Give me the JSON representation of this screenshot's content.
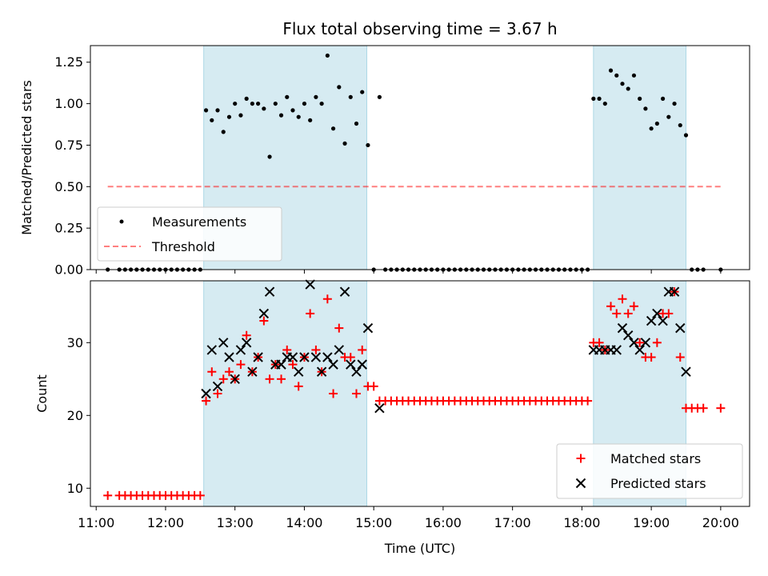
{
  "chart_data": [
    {
      "type": "scatter",
      "title": "Flux total observing time = 3.67 h",
      "xlabel": "",
      "ylabel": "Matched/Predicted stars",
      "ylim": [
        0,
        1.35
      ],
      "yticks": [
        "0.00",
        "0.25",
        "0.50",
        "0.75",
        "1.00",
        "1.25"
      ],
      "ytick_values": [
        0,
        0.25,
        0.5,
        0.75,
        1.0,
        1.25
      ],
      "xlim": [
        "10:55",
        "20:25"
      ],
      "xticks": [],
      "legend_position": "lower-left",
      "shaded_intervals": [
        [
          "12:33",
          "14:54"
        ],
        [
          "18:10",
          "19:30"
        ]
      ],
      "shade_color": "#add8e6",
      "series": [
        {
          "name": "Measurements",
          "marker": "dot",
          "color": "#000000",
          "points": [
            [
              "11:10",
              0
            ],
            [
              "11:20",
              0
            ],
            [
              "11:25",
              0
            ],
            [
              "11:30",
              0
            ],
            [
              "11:35",
              0
            ],
            [
              "11:40",
              0
            ],
            [
              "11:45",
              0
            ],
            [
              "11:50",
              0
            ],
            [
              "11:55",
              0
            ],
            [
              "12:00",
              0
            ],
            [
              "12:05",
              0
            ],
            [
              "12:10",
              0
            ],
            [
              "12:15",
              0
            ],
            [
              "12:20",
              0
            ],
            [
              "12:25",
              0
            ],
            [
              "12:30",
              0
            ],
            [
              "12:35",
              0.96
            ],
            [
              "12:40",
              0.9
            ],
            [
              "12:45",
              0.96
            ],
            [
              "12:50",
              0.83
            ],
            [
              "12:55",
              0.92
            ],
            [
              "13:00",
              1.0
            ],
            [
              "13:05",
              0.93
            ],
            [
              "13:10",
              1.03
            ],
            [
              "13:15",
              1.0
            ],
            [
              "13:20",
              1.0
            ],
            [
              "13:25",
              0.97
            ],
            [
              "13:30",
              0.68
            ],
            [
              "13:35",
              1.0
            ],
            [
              "13:40",
              0.93
            ],
            [
              "13:45",
              1.04
            ],
            [
              "13:50",
              0.96
            ],
            [
              "13:55",
              0.92
            ],
            [
              "14:00",
              1.0
            ],
            [
              "14:05",
              0.9
            ],
            [
              "14:10",
              1.04
            ],
            [
              "14:15",
              1.0
            ],
            [
              "14:20",
              1.29
            ],
            [
              "14:25",
              0.85
            ],
            [
              "14:30",
              1.1
            ],
            [
              "14:35",
              0.76
            ],
            [
              "14:40",
              1.04
            ],
            [
              "14:45",
              0.88
            ],
            [
              "14:50",
              1.07
            ],
            [
              "14:55",
              0.75
            ],
            [
              "15:00",
              0
            ],
            [
              "15:05",
              1.04
            ],
            [
              "15:10",
              0
            ],
            [
              "15:15",
              0
            ],
            [
              "15:20",
              0
            ],
            [
              "15:25",
              0
            ],
            [
              "15:30",
              0
            ],
            [
              "15:35",
              0
            ],
            [
              "15:40",
              0
            ],
            [
              "15:45",
              0
            ],
            [
              "15:50",
              0
            ],
            [
              "15:55",
              0
            ],
            [
              "16:00",
              0
            ],
            [
              "16:05",
              0
            ],
            [
              "16:10",
              0
            ],
            [
              "16:15",
              0
            ],
            [
              "16:20",
              0
            ],
            [
              "16:25",
              0
            ],
            [
              "16:30",
              0
            ],
            [
              "16:35",
              0
            ],
            [
              "16:40",
              0
            ],
            [
              "16:45",
              0
            ],
            [
              "16:50",
              0
            ],
            [
              "16:55",
              0
            ],
            [
              "17:00",
              0
            ],
            [
              "17:05",
              0
            ],
            [
              "17:10",
              0
            ],
            [
              "17:15",
              0
            ],
            [
              "17:20",
              0
            ],
            [
              "17:25",
              0
            ],
            [
              "17:30",
              0
            ],
            [
              "17:35",
              0
            ],
            [
              "17:40",
              0
            ],
            [
              "17:45",
              0
            ],
            [
              "17:50",
              0
            ],
            [
              "17:55",
              0
            ],
            [
              "18:00",
              0
            ],
            [
              "18:05",
              0
            ],
            [
              "18:10",
              1.03
            ],
            [
              "18:15",
              1.03
            ],
            [
              "18:20",
              1.0
            ],
            [
              "18:25",
              1.2
            ],
            [
              "18:30",
              1.17
            ],
            [
              "18:35",
              1.12
            ],
            [
              "18:40",
              1.09
            ],
            [
              "18:45",
              1.17
            ],
            [
              "18:50",
              1.03
            ],
            [
              "18:55",
              0.97
            ],
            [
              "19:00",
              0.85
            ],
            [
              "19:05",
              0.88
            ],
            [
              "19:10",
              1.03
            ],
            [
              "19:15",
              0.92
            ],
            [
              "19:20",
              1.0
            ],
            [
              "19:25",
              0.87
            ],
            [
              "19:30",
              0.81
            ],
            [
              "19:35",
              0
            ],
            [
              "19:40",
              0
            ],
            [
              "19:45",
              0
            ],
            [
              "20:00",
              0
            ]
          ]
        },
        {
          "name": "Threshold",
          "type": "line",
          "style": "dashed",
          "color": "#ff0000",
          "alpha": 0.5,
          "points": [
            [
              "11:10",
              0.5
            ],
            [
              "20:00",
              0.5
            ]
          ]
        }
      ]
    },
    {
      "type": "scatter",
      "title": "",
      "xlabel": "Time (UTC)",
      "ylabel": "Count",
      "ylim": [
        7.5,
        38.5
      ],
      "yticks": [
        "10",
        "20",
        "30"
      ],
      "ytick_values": [
        10,
        20,
        30
      ],
      "xlim": [
        "10:55",
        "20:25"
      ],
      "xticks": [
        "11:00",
        "12:00",
        "13:00",
        "14:00",
        "15:00",
        "16:00",
        "17:00",
        "18:00",
        "19:00",
        "20:00"
      ],
      "legend_position": "lower-right",
      "shaded_intervals": [
        [
          "12:33",
          "14:54"
        ],
        [
          "18:10",
          "19:30"
        ]
      ],
      "shade_color": "#add8e6",
      "series": [
        {
          "name": "Matched stars",
          "marker": "plus",
          "color": "#ff0000",
          "points": [
            [
              "11:10",
              9
            ],
            [
              "11:20",
              9
            ],
            [
              "11:25",
              9
            ],
            [
              "11:30",
              9
            ],
            [
              "11:35",
              9
            ],
            [
              "11:40",
              9
            ],
            [
              "11:45",
              9
            ],
            [
              "11:50",
              9
            ],
            [
              "11:55",
              9
            ],
            [
              "12:00",
              9
            ],
            [
              "12:05",
              9
            ],
            [
              "12:10",
              9
            ],
            [
              "12:15",
              9
            ],
            [
              "12:20",
              9
            ],
            [
              "12:25",
              9
            ],
            [
              "12:30",
              9
            ],
            [
              "12:35",
              22
            ],
            [
              "12:40",
              26
            ],
            [
              "12:45",
              23
            ],
            [
              "12:50",
              25
            ],
            [
              "12:55",
              26
            ],
            [
              "13:00",
              25
            ],
            [
              "13:05",
              27
            ],
            [
              "13:10",
              31
            ],
            [
              "13:15",
              26
            ],
            [
              "13:20",
              28
            ],
            [
              "13:25",
              33
            ],
            [
              "13:30",
              25
            ],
            [
              "13:35",
              27
            ],
            [
              "13:40",
              25
            ],
            [
              "13:45",
              29
            ],
            [
              "13:50",
              27
            ],
            [
              "13:55",
              24
            ],
            [
              "14:00",
              28
            ],
            [
              "14:05",
              34
            ],
            [
              "14:10",
              29
            ],
            [
              "14:15",
              26
            ],
            [
              "14:20",
              36
            ],
            [
              "14:25",
              23
            ],
            [
              "14:30",
              32
            ],
            [
              "14:35",
              28
            ],
            [
              "14:40",
              28
            ],
            [
              "14:45",
              23
            ],
            [
              "14:50",
              29
            ],
            [
              "14:55",
              24
            ],
            [
              "15:00",
              24
            ],
            [
              "15:05",
              22
            ],
            [
              "15:10",
              22
            ],
            [
              "15:15",
              22
            ],
            [
              "15:20",
              22
            ],
            [
              "15:25",
              22
            ],
            [
              "15:30",
              22
            ],
            [
              "15:35",
              22
            ],
            [
              "15:40",
              22
            ],
            [
              "15:45",
              22
            ],
            [
              "15:50",
              22
            ],
            [
              "15:55",
              22
            ],
            [
              "16:00",
              22
            ],
            [
              "16:05",
              22
            ],
            [
              "16:10",
              22
            ],
            [
              "16:15",
              22
            ],
            [
              "16:20",
              22
            ],
            [
              "16:25",
              22
            ],
            [
              "16:30",
              22
            ],
            [
              "16:35",
              22
            ],
            [
              "16:40",
              22
            ],
            [
              "16:45",
              22
            ],
            [
              "16:50",
              22
            ],
            [
              "16:55",
              22
            ],
            [
              "17:00",
              22
            ],
            [
              "17:05",
              22
            ],
            [
              "17:10",
              22
            ],
            [
              "17:15",
              22
            ],
            [
              "17:20",
              22
            ],
            [
              "17:25",
              22
            ],
            [
              "17:30",
              22
            ],
            [
              "17:35",
              22
            ],
            [
              "17:40",
              22
            ],
            [
              "17:45",
              22
            ],
            [
              "17:50",
              22
            ],
            [
              "17:55",
              22
            ],
            [
              "18:00",
              22
            ],
            [
              "18:05",
              22
            ],
            [
              "18:10",
              30
            ],
            [
              "18:15",
              30
            ],
            [
              "18:20",
              29
            ],
            [
              "18:25",
              35
            ],
            [
              "18:30",
              34
            ],
            [
              "18:35",
              36
            ],
            [
              "18:40",
              34
            ],
            [
              "18:45",
              35
            ],
            [
              "18:50",
              30
            ],
            [
              "18:55",
              28
            ],
            [
              "19:00",
              28
            ],
            [
              "19:05",
              30
            ],
            [
              "19:10",
              34
            ],
            [
              "19:15",
              34
            ],
            [
              "19:20",
              37
            ],
            [
              "19:25",
              28
            ],
            [
              "19:30",
              21
            ],
            [
              "19:35",
              21
            ],
            [
              "19:40",
              21
            ],
            [
              "19:45",
              21
            ],
            [
              "20:00",
              21
            ]
          ]
        },
        {
          "name": "Predicted stars",
          "marker": "x",
          "color": "#000000",
          "points": [
            [
              "12:35",
              23
            ],
            [
              "12:40",
              29
            ],
            [
              "12:45",
              24
            ],
            [
              "12:50",
              30
            ],
            [
              "12:55",
              28
            ],
            [
              "13:00",
              25
            ],
            [
              "13:05",
              29
            ],
            [
              "13:10",
              30
            ],
            [
              "13:15",
              26
            ],
            [
              "13:20",
              28
            ],
            [
              "13:25",
              34
            ],
            [
              "13:30",
              37
            ],
            [
              "13:35",
              27
            ],
            [
              "13:40",
              27
            ],
            [
              "13:45",
              28
            ],
            [
              "13:50",
              28
            ],
            [
              "13:55",
              26
            ],
            [
              "14:00",
              28
            ],
            [
              "14:05",
              38
            ],
            [
              "14:10",
              28
            ],
            [
              "14:15",
              26
            ],
            [
              "14:20",
              28
            ],
            [
              "14:25",
              27
            ],
            [
              "14:30",
              29
            ],
            [
              "14:35",
              37
            ],
            [
              "14:40",
              27
            ],
            [
              "14:45",
              26
            ],
            [
              "14:50",
              27
            ],
            [
              "14:55",
              32
            ],
            [
              "15:05",
              21
            ],
            [
              "18:10",
              29
            ],
            [
              "18:15",
              29
            ],
            [
              "18:20",
              29
            ],
            [
              "18:25",
              29
            ],
            [
              "18:30",
              29
            ],
            [
              "18:35",
              32
            ],
            [
              "18:40",
              31
            ],
            [
              "18:45",
              30
            ],
            [
              "18:50",
              29
            ],
            [
              "18:55",
              30
            ],
            [
              "19:00",
              33
            ],
            [
              "19:05",
              34
            ],
            [
              "19:10",
              33
            ],
            [
              "19:15",
              37
            ],
            [
              "19:20",
              37
            ],
            [
              "19:25",
              32
            ],
            [
              "19:30",
              26
            ]
          ]
        }
      ]
    }
  ]
}
